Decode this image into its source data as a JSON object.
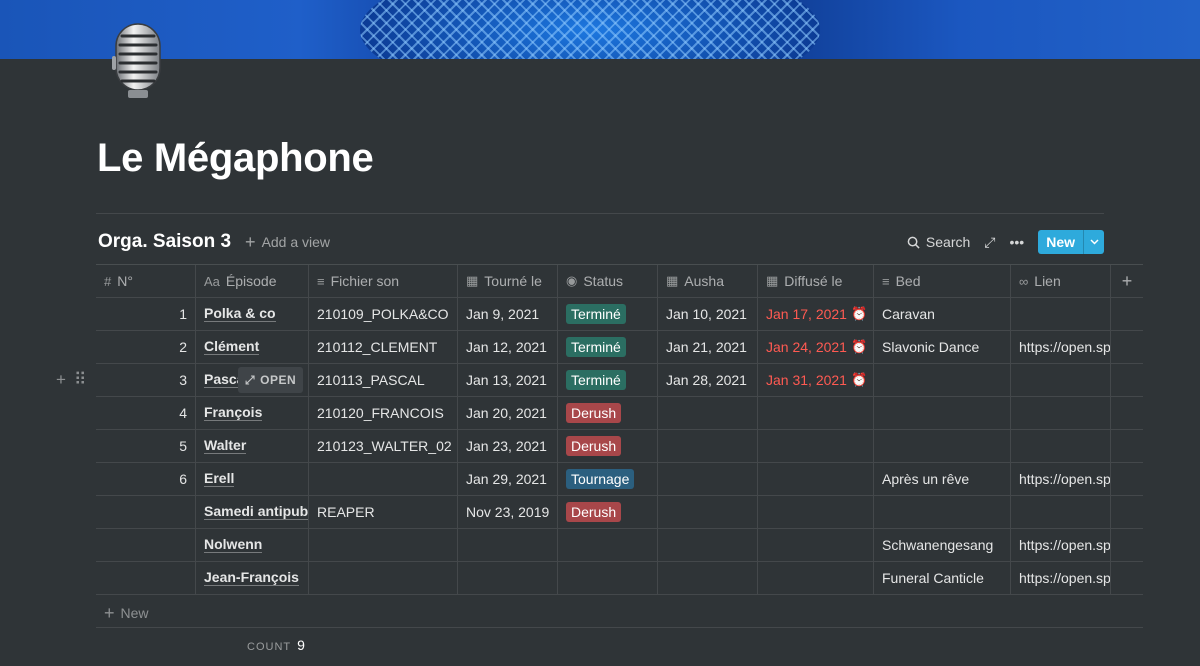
{
  "page": {
    "title": "Le Mégaphone",
    "icon": "microphone-icon"
  },
  "database": {
    "title": "Orga. Saison 3",
    "add_view_label": "Add a view",
    "search_label": "Search",
    "new_label": "New",
    "new_row_label": "New",
    "count_label": "COUNT",
    "count_value": "9",
    "open_label": "OPEN"
  },
  "columns": [
    {
      "label": "N°",
      "icon": "hash-icon"
    },
    {
      "label": "Épisode",
      "icon": "title-icon"
    },
    {
      "label": "Fichier son",
      "icon": "text-icon"
    },
    {
      "label": "Tourné le",
      "icon": "calendar-icon"
    },
    {
      "label": "Status",
      "icon": "select-icon"
    },
    {
      "label": "Ausha",
      "icon": "calendar-icon"
    },
    {
      "label": "Diffusé le",
      "icon": "calendar-icon"
    },
    {
      "label": "Bed",
      "icon": "text-icon"
    },
    {
      "label": "Lien",
      "icon": "link-icon"
    }
  ],
  "rows": [
    {
      "num": "1",
      "episode": "Polka & co",
      "file": "210109_POLKA&CO",
      "shot": "Jan 9, 2021",
      "status": "Terminé",
      "ausha": "Jan 10, 2021",
      "aired": "Jan 17, 2021",
      "bed": "Caravan",
      "link": ""
    },
    {
      "num": "2",
      "episode": "Clément",
      "file": "210112_CLEMENT",
      "shot": "Jan 12, 2021",
      "status": "Terminé",
      "ausha": "Jan 21, 2021",
      "aired": "Jan 24, 2021",
      "bed": "Slavonic Dance",
      "link": "https://open.sp"
    },
    {
      "num": "3",
      "episode": "Pasca",
      "file": "210113_PASCAL",
      "shot": "Jan 13, 2021",
      "status": "Terminé",
      "ausha": "Jan 28, 2021",
      "aired": "Jan 31, 2021",
      "bed": "",
      "link": ""
    },
    {
      "num": "4",
      "episode": "François",
      "file": "210120_FRANCOIS",
      "shot": "Jan 20, 2021",
      "status": "Derush",
      "ausha": "",
      "aired": "",
      "bed": "",
      "link": ""
    },
    {
      "num": "5",
      "episode": "Walter",
      "file": "210123_WALTER_02",
      "shot": "Jan 23, 2021",
      "status": "Derush",
      "ausha": "",
      "aired": "",
      "bed": "",
      "link": ""
    },
    {
      "num": "6",
      "episode": "Erell",
      "file": "",
      "shot": "Jan 29, 2021",
      "status": "Tournage",
      "ausha": "",
      "aired": "",
      "bed": "Après un rêve",
      "link": "https://open.sp"
    },
    {
      "num": "",
      "episode": "Samedi antipub",
      "file": "REAPER",
      "shot": "Nov 23, 2019",
      "status": "Derush",
      "ausha": "",
      "aired": "",
      "bed": "",
      "link": ""
    },
    {
      "num": "",
      "episode": "Nolwenn",
      "file": "",
      "shot": "",
      "status": "",
      "ausha": "",
      "aired": "",
      "bed": "Schwanengesang",
      "link": "https://open.sp"
    },
    {
      "num": "",
      "episode": "Jean-François",
      "file": "",
      "shot": "",
      "status": "",
      "ausha": "",
      "aired": "",
      "bed": "Funeral Canticle",
      "link": "https://open.sp"
    }
  ],
  "status_colors": {
    "Terminé": "#2b6e62",
    "Derush": "#a8474a",
    "Tournage": "#2b5f7f"
  },
  "colors": {
    "background": "#2f3437",
    "accent": "#2eaadc",
    "overdue": "#ff5a52"
  }
}
